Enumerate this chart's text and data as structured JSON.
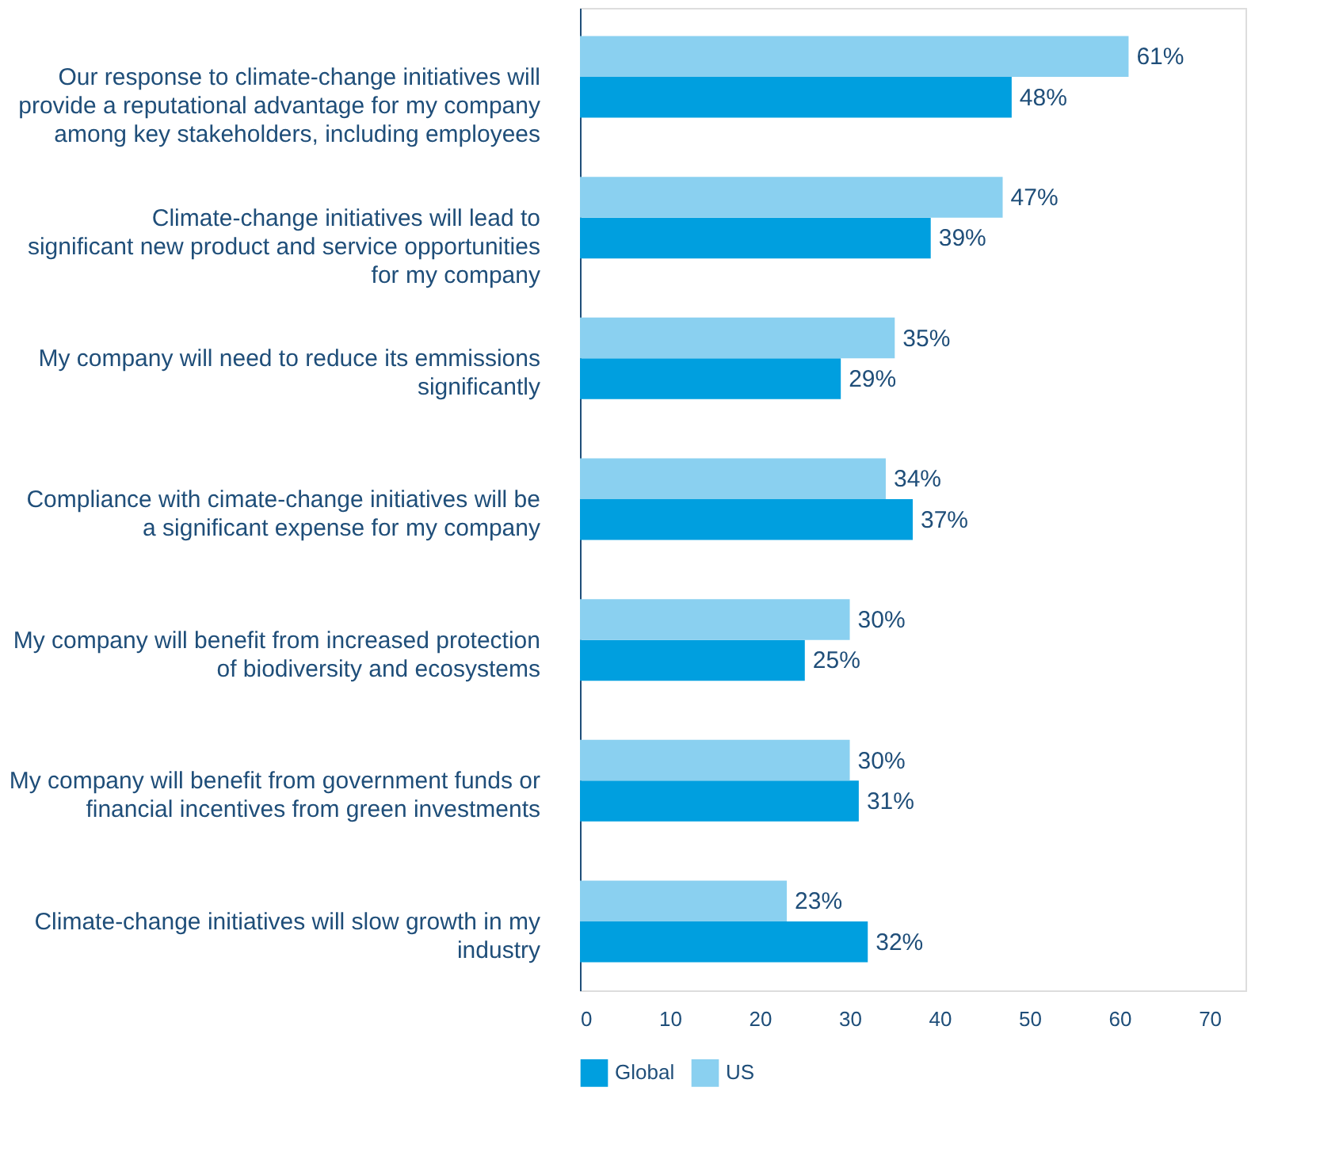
{
  "chart_data": {
    "type": "bar",
    "orientation": "horizontal",
    "categories": [
      "Our response to climate-change initiatives will provide a reputational advantage for my company among key stakeholders, including employees",
      "Climate-change initiatives will lead to significant new product and service opportunities for my company",
      "My company will need to reduce its emmissions significantly",
      "Compliance with cimate-change initiatives will be a significant expense for my company",
      "My company will benefit from increased protection of biodiversity and ecosystems",
      "My company will benefit from government funds or financial incentives from green investments",
      "Climate-change initiatives will slow growth in my industry"
    ],
    "series": [
      {
        "name": "Global",
        "color": "#009fdf",
        "values": [
          48,
          39,
          29,
          37,
          25,
          31,
          32
        ],
        "value_labels": [
          "48%",
          "39%",
          "29%",
          "37%",
          "25%",
          "31%",
          "32%"
        ]
      },
      {
        "name": "US",
        "color": "#8ad0f0",
        "values": [
          61,
          47,
          35,
          34,
          30,
          30,
          23
        ],
        "value_labels": [
          "61%",
          "47%",
          "35%",
          "34%",
          "30%",
          "30%",
          "23%"
        ]
      }
    ],
    "xlim": [
      0,
      74
    ],
    "xticks": [
      0,
      10,
      20,
      30,
      40,
      50,
      60,
      70
    ],
    "grid": false,
    "legend": "bottom"
  }
}
